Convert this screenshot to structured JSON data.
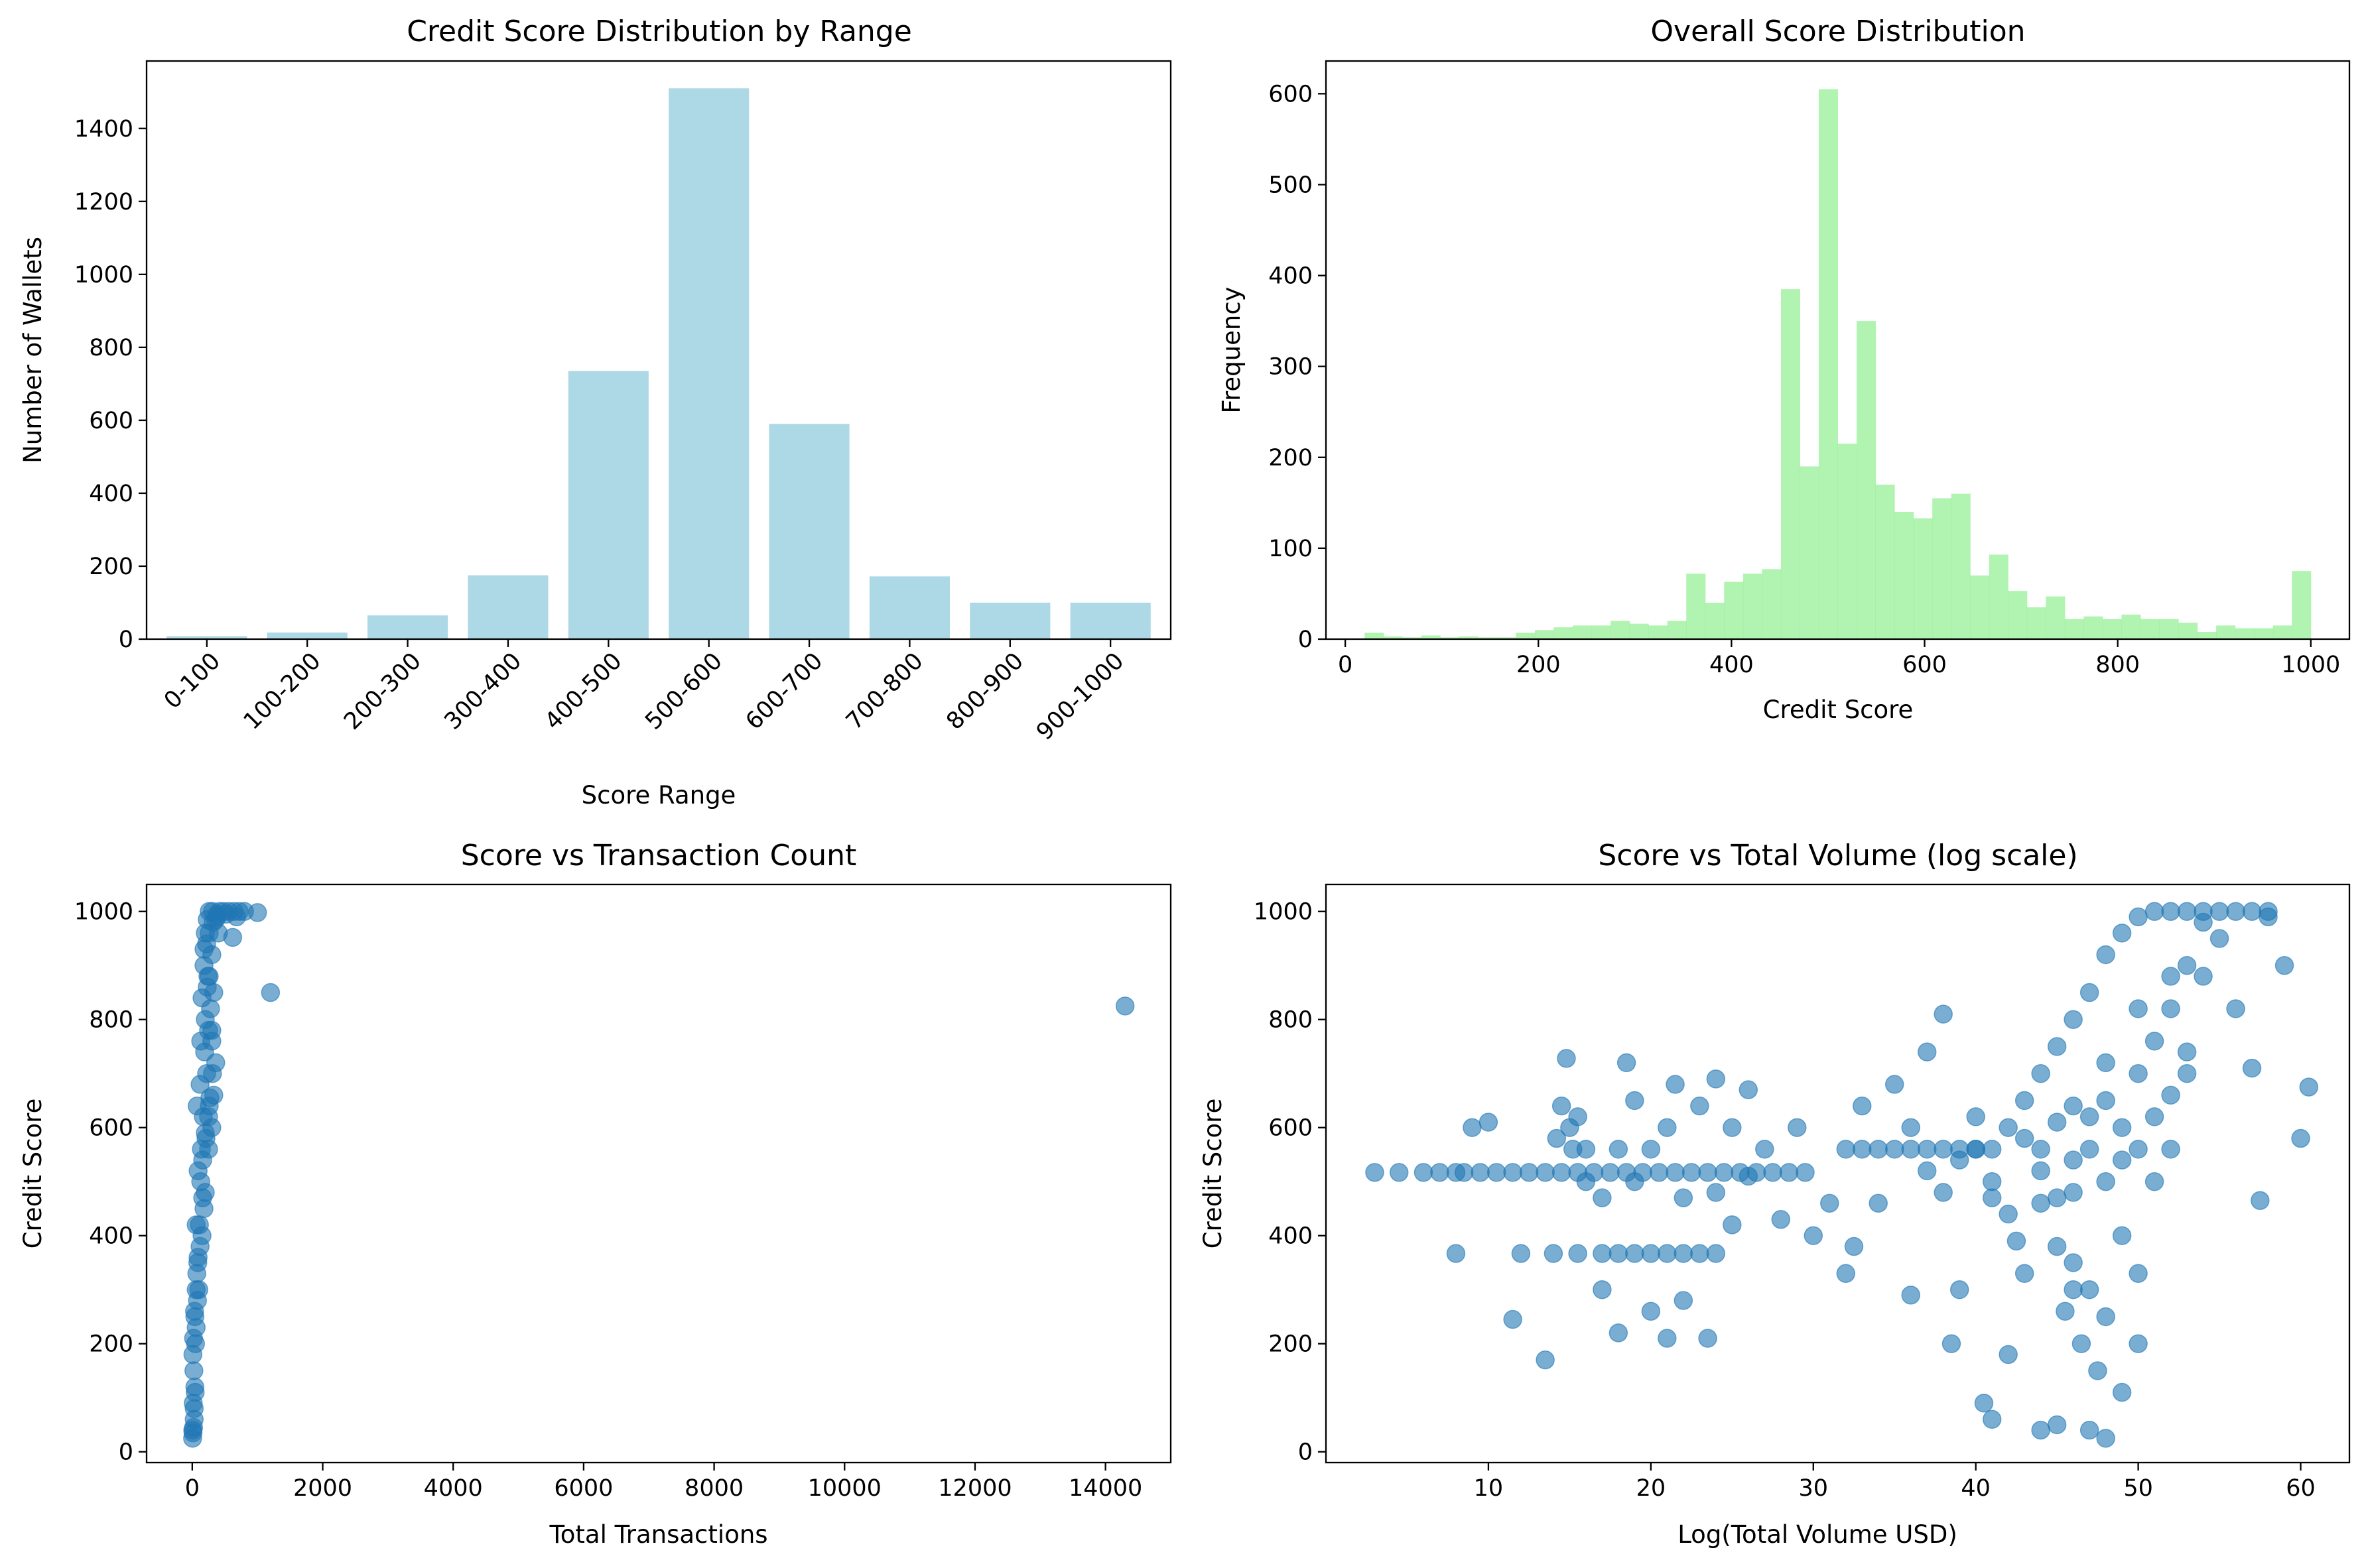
{
  "colors": {
    "bar": "#add8e6",
    "hist": "#90ee90",
    "scatter": "#1f77b4",
    "axis": "#000000",
    "background": "#ffffff"
  },
  "chart_data": [
    {
      "id": "range",
      "type": "bar",
      "title": "Credit Score Distribution by Range",
      "xlabel": "Score Range",
      "ylabel": "Number of Wallets",
      "categories": [
        "0-100",
        "100-200",
        "200-300",
        "300-400",
        "400-500",
        "500-600",
        "600-700",
        "700-800",
        "800-900",
        "900-1000"
      ],
      "values": [
        8,
        18,
        65,
        175,
        735,
        1510,
        590,
        172,
        100,
        100
      ],
      "ylim": [
        0,
        1585
      ],
      "yticks": [
        "0",
        "200",
        "400",
        "600",
        "800",
        "1000",
        "1200",
        "1400"
      ],
      "xtick_rotation": 45,
      "grid": false
    },
    {
      "id": "hist",
      "type": "bar",
      "subtype": "histogram",
      "title": "Overall Score Distribution",
      "xlabel": "Credit Score",
      "ylabel": "Frequency",
      "bin_start": 20,
      "bin_width": 19.6,
      "values": [
        7,
        3,
        2,
        4,
        2,
        3,
        2,
        2,
        7,
        10,
        13,
        15,
        15,
        20,
        17,
        15,
        20,
        72,
        40,
        63,
        72,
        77,
        385,
        190,
        605,
        215,
        350,
        170,
        140,
        133,
        155,
        160,
        70,
        93,
        53,
        35,
        47,
        22,
        25,
        22,
        27,
        22,
        22,
        18,
        8,
        15,
        12,
        12,
        15,
        75
      ],
      "xlim": [
        -20,
        1040
      ],
      "ylim": [
        0,
        636
      ],
      "xticks": [
        "0",
        "200",
        "400",
        "600",
        "800",
        "1000"
      ],
      "yticks": [
        "0",
        "100",
        "200",
        "300",
        "400",
        "500",
        "600"
      ],
      "grid": false
    },
    {
      "id": "txn",
      "type": "scatter",
      "title": "Score vs Transaction Count",
      "xlabel": "Total Transactions",
      "ylabel": "Credit Score",
      "xlim": [
        -700,
        15000
      ],
      "ylim": [
        -20,
        1050
      ],
      "xticks": [
        "0",
        "2000",
        "4000",
        "6000",
        "8000",
        "10000",
        "12000",
        "14000"
      ],
      "yticks": [
        "0",
        "200",
        "400",
        "600",
        "800",
        "1000"
      ],
      "points": [
        [
          5,
          25
        ],
        [
          8,
          40
        ],
        [
          12,
          35
        ],
        [
          20,
          45
        ],
        [
          30,
          60
        ],
        [
          15,
          90
        ],
        [
          40,
          120
        ],
        [
          25,
          150
        ],
        [
          10,
          180
        ],
        [
          50,
          200
        ],
        [
          60,
          230
        ],
        [
          35,
          260
        ],
        [
          80,
          280
        ],
        [
          100,
          300
        ],
        [
          70,
          330
        ],
        [
          90,
          360
        ],
        [
          120,
          380
        ],
        [
          150,
          400
        ],
        [
          60,
          420
        ],
        [
          180,
          450
        ],
        [
          200,
          480
        ],
        [
          130,
          500
        ],
        [
          90,
          520
        ],
        [
          160,
          540
        ],
        [
          250,
          560
        ],
        [
          210,
          580
        ],
        [
          300,
          600
        ],
        [
          170,
          620
        ],
        [
          260,
          640
        ],
        [
          330,
          660
        ],
        [
          120,
          680
        ],
        [
          220,
          700
        ],
        [
          360,
          720
        ],
        [
          190,
          740
        ],
        [
          300,
          760
        ],
        [
          250,
          780
        ],
        [
          200,
          800
        ],
        [
          280,
          820
        ],
        [
          150,
          840
        ],
        [
          230,
          860
        ],
        [
          260,
          880
        ],
        [
          180,
          900
        ],
        [
          300,
          920
        ],
        [
          220,
          940
        ],
        [
          260,
          960
        ],
        [
          320,
          980
        ],
        [
          380,
          995
        ],
        [
          480,
          1000
        ],
        [
          560,
          1000
        ],
        [
          640,
          1000
        ],
        [
          720,
          1000
        ],
        [
          800,
          1000
        ],
        [
          1000,
          998
        ],
        [
          620,
          952
        ],
        [
          1200,
          850
        ],
        [
          14300,
          825
        ],
        [
          260,
          1000
        ],
        [
          230,
          985
        ],
        [
          200,
          960
        ],
        [
          310,
          1000
        ],
        [
          420,
          1000
        ],
        [
          360,
          985
        ],
        [
          180,
          930
        ],
        [
          240,
          880
        ],
        [
          130,
          760
        ],
        [
          75,
          640
        ],
        [
          310,
          700
        ],
        [
          250,
          620
        ],
        [
          380,
          990
        ],
        [
          520,
          995
        ],
        [
          680,
          990
        ],
        [
          160,
          470
        ],
        [
          110,
          420
        ],
        [
          60,
          300
        ],
        [
          40,
          250
        ],
        [
          20,
          210
        ],
        [
          85,
          350
        ],
        [
          140,
          560
        ],
        [
          200,
          590
        ],
        [
          270,
          655
        ],
        [
          300,
          780
        ],
        [
          330,
          850
        ],
        [
          400,
          960
        ],
        [
          30,
          80
        ],
        [
          45,
          110
        ]
      ],
      "grid": false
    },
    {
      "id": "vol",
      "type": "scatter",
      "title": "Score vs Total Volume (log scale)",
      "xlabel": "Log(Total Volume USD)",
      "ylabel": "Credit Score",
      "xlim": [
        0,
        63
      ],
      "ylim": [
        -20,
        1050
      ],
      "xticks": [
        "10",
        "20",
        "30",
        "40",
        "50",
        "60"
      ],
      "yticks": [
        "0",
        "200",
        "400",
        "600",
        "800",
        "1000"
      ],
      "points": [
        [
          3,
          517
        ],
        [
          4.5,
          517
        ],
        [
          6,
          517
        ],
        [
          7,
          517
        ],
        [
          8,
          517
        ],
        [
          8.5,
          517
        ],
        [
          9.5,
          517
        ],
        [
          10.5,
          517
        ],
        [
          11.5,
          517
        ],
        [
          12.5,
          517
        ],
        [
          13.5,
          517
        ],
        [
          14.5,
          517
        ],
        [
          15.5,
          517
        ],
        [
          16.5,
          517
        ],
        [
          17.5,
          517
        ],
        [
          18.5,
          517
        ],
        [
          19.5,
          517
        ],
        [
          20.5,
          517
        ],
        [
          21.5,
          517
        ],
        [
          22.5,
          517
        ],
        [
          23.5,
          517
        ],
        [
          24.5,
          517
        ],
        [
          25.5,
          517
        ],
        [
          26.5,
          517
        ],
        [
          27.5,
          517
        ],
        [
          28.5,
          517
        ],
        [
          29.5,
          517
        ],
        [
          14,
          367
        ],
        [
          17,
          367
        ],
        [
          18,
          367
        ],
        [
          19,
          367
        ],
        [
          20,
          367
        ],
        [
          21,
          367
        ],
        [
          22,
          367
        ],
        [
          23,
          367
        ],
        [
          24,
          367
        ],
        [
          12,
          367
        ],
        [
          15.5,
          367
        ],
        [
          8,
          367
        ],
        [
          14.5,
          640
        ],
        [
          15,
          600
        ],
        [
          14.8,
          728
        ],
        [
          15.2,
          560
        ],
        [
          14.2,
          580
        ],
        [
          15.5,
          620
        ],
        [
          16,
          560
        ],
        [
          32,
          560
        ],
        [
          33,
          560
        ],
        [
          34,
          560
        ],
        [
          35,
          560
        ],
        [
          36,
          560
        ],
        [
          37,
          560
        ],
        [
          38,
          560
        ],
        [
          39,
          560
        ],
        [
          40,
          560
        ],
        [
          41,
          560
        ],
        [
          9,
          600
        ],
        [
          10,
          610
        ],
        [
          11.5,
          245
        ],
        [
          13.5,
          170
        ],
        [
          17,
          300
        ],
        [
          18,
          220
        ],
        [
          18.5,
          720
        ],
        [
          19,
          650
        ],
        [
          20,
          260
        ],
        [
          21,
          210
        ],
        [
          21.5,
          680
        ],
        [
          22,
          280
        ],
        [
          23,
          640
        ],
        [
          23.5,
          210
        ],
        [
          24,
          690
        ],
        [
          25,
          600
        ],
        [
          26,
          670
        ],
        [
          27,
          560
        ],
        [
          28,
          430
        ],
        [
          29,
          600
        ],
        [
          30,
          400
        ],
        [
          31,
          460
        ],
        [
          32,
          330
        ],
        [
          32.5,
          380
        ],
        [
          33,
          640
        ],
        [
          34,
          460
        ],
        [
          35,
          680
        ],
        [
          36,
          290
        ],
        [
          37,
          740
        ],
        [
          38,
          810
        ],
        [
          38.5,
          200
        ],
        [
          39,
          300
        ],
        [
          40,
          560
        ],
        [
          40.5,
          90
        ],
        [
          41,
          60
        ],
        [
          42,
          180
        ],
        [
          43,
          330
        ],
        [
          44,
          40
        ],
        [
          45,
          50
        ],
        [
          46,
          300
        ],
        [
          47,
          40
        ],
        [
          48,
          25
        ],
        [
          49,
          110
        ],
        [
          50,
          200
        ],
        [
          51,
          500
        ],
        [
          52,
          560
        ],
        [
          53,
          700
        ],
        [
          54,
          880
        ],
        [
          55,
          950
        ],
        [
          56,
          820
        ],
        [
          57,
          710
        ],
        [
          58,
          1000
        ],
        [
          59,
          900
        ],
        [
          60,
          580
        ],
        [
          60.5,
          675
        ],
        [
          57.5,
          465
        ],
        [
          36,
          600
        ],
        [
          37,
          520
        ],
        [
          38,
          480
        ],
        [
          39,
          540
        ],
        [
          40,
          620
        ],
        [
          41,
          500
        ],
        [
          42,
          440
        ],
        [
          43,
          580
        ],
        [
          44,
          520
        ],
        [
          45,
          610
        ],
        [
          46,
          480
        ],
        [
          47,
          560
        ],
        [
          48,
          650
        ],
        [
          49,
          600
        ],
        [
          50,
          700
        ],
        [
          51,
          760
        ],
        [
          52,
          820
        ],
        [
          53,
          900
        ],
        [
          54,
          980
        ],
        [
          55,
          1000
        ],
        [
          56,
          1000
        ],
        [
          57,
          1000
        ],
        [
          58,
          990
        ],
        [
          44,
          700
        ],
        [
          45,
          750
        ],
        [
          46,
          800
        ],
        [
          47,
          850
        ],
        [
          48,
          920
        ],
        [
          49,
          960
        ],
        [
          50,
          990
        ],
        [
          51,
          1000
        ],
        [
          52,
          1000
        ],
        [
          53,
          1000
        ],
        [
          54,
          1000
        ],
        [
          45,
          380
        ],
        [
          46,
          350
        ],
        [
          47,
          300
        ],
        [
          48,
          250
        ],
        [
          49,
          400
        ],
        [
          50,
          330
        ],
        [
          46.5,
          200
        ],
        [
          47.5,
          150
        ],
        [
          45.5,
          260
        ],
        [
          42,
          600
        ],
        [
          43,
          650
        ],
        [
          44,
          560
        ],
        [
          46,
          640
        ],
        [
          48,
          720
        ],
        [
          50,
          820
        ],
        [
          52,
          880
        ],
        [
          41,
          470
        ],
        [
          42.5,
          390
        ],
        [
          20,
          560
        ],
        [
          21,
          600
        ],
        [
          22,
          470
        ],
        [
          19,
          500
        ],
        [
          18,
          560
        ],
        [
          24,
          480
        ],
        [
          25,
          420
        ],
        [
          26,
          510
        ],
        [
          17,
          470
        ],
        [
          16,
          500
        ],
        [
          50,
          560
        ],
        [
          51,
          620
        ],
        [
          52,
          660
        ],
        [
          53,
          740
        ],
        [
          49,
          540
        ],
        [
          48,
          500
        ],
        [
          47,
          620
        ],
        [
          46,
          540
        ],
        [
          45,
          470
        ],
        [
          44,
          460
        ]
      ],
      "grid": false
    }
  ]
}
